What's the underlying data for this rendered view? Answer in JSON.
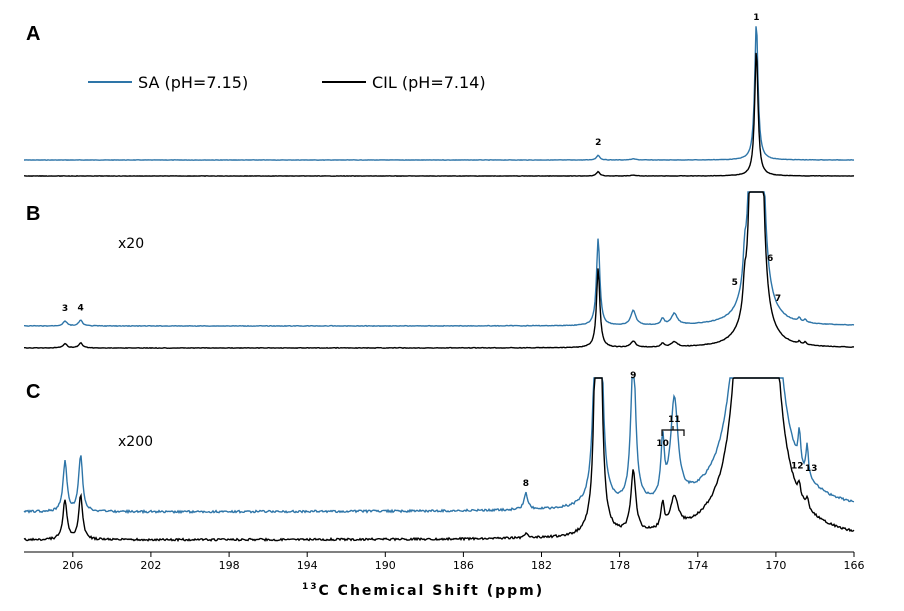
{
  "chart_data": {
    "type": "line",
    "xlabel_sup": "13",
    "xlabel_main": "C Chemical Shift (ppm)",
    "x_reversed": true,
    "xlim": [
      208.5,
      166
    ],
    "x_ticks": [
      206,
      202,
      198,
      194,
      190,
      186,
      182,
      178,
      174,
      170,
      166
    ],
    "colors": {
      "SA": "#2e75a8",
      "CIL": "#000000"
    },
    "legend": [
      {
        "name": "SA (pH=7.15)",
        "color": "#2e75a8"
      },
      {
        "name": "CIL (pH=7.14)",
        "color": "#000000"
      }
    ],
    "panels": [
      {
        "letter": "A",
        "scale": "",
        "peaks": [
          {
            "shift": 171.0,
            "height_sa": 1.0,
            "height_cil": 0.92,
            "width": 0.1
          },
          {
            "shift": 179.1,
            "height_sa": 0.035,
            "height_cil": 0.032,
            "width": 0.1
          },
          {
            "shift": 177.3,
            "height_sa": 0.008,
            "height_cil": 0.006,
            "width": 0.15
          }
        ],
        "labels": [
          {
            "text": "1",
            "shift": 171.0
          },
          {
            "text": "2",
            "shift": 179.1
          }
        ]
      },
      {
        "letter": "B",
        "scale": "x20",
        "peaks": [
          {
            "shift": 171.0,
            "height_sa": 20,
            "height_cil": 18.4,
            "width": 0.1
          },
          {
            "shift": 179.1,
            "height_sa": 0.7,
            "height_cil": 0.64,
            "width": 0.1
          },
          {
            "shift": 177.3,
            "height_sa": 0.12,
            "height_cil": 0.05,
            "width": 0.15
          },
          {
            "shift": 175.8,
            "height_sa": 0.05,
            "height_cil": 0.03,
            "width": 0.1
          },
          {
            "shift": 175.2,
            "height_sa": 0.09,
            "height_cil": 0.04,
            "width": 0.18
          },
          {
            "shift": 171.6,
            "height_sa": 0.2,
            "height_cil": 0.18,
            "width": 0.08
          },
          {
            "shift": 170.7,
            "height_sa": 0.25,
            "height_cil": 0.2,
            "width": 0.08
          },
          {
            "shift": 206.4,
            "height_sa": 0.04,
            "height_cil": 0.035,
            "width": 0.12
          },
          {
            "shift": 205.6,
            "height_sa": 0.045,
            "height_cil": 0.04,
            "width": 0.12
          },
          {
            "shift": 168.8,
            "height_sa": 0.03,
            "height_cil": 0.02,
            "width": 0.07
          },
          {
            "shift": 168.5,
            "height_sa": 0.025,
            "height_cil": 0.02,
            "width": 0.07
          }
        ],
        "labels": [
          {
            "text": "3",
            "shift": 206.4
          },
          {
            "text": "4",
            "shift": 205.6
          },
          {
            "text": "5",
            "shift": 171.8
          },
          {
            "text": "6",
            "shift": 170.5
          },
          {
            "text": "7",
            "shift": 170.2
          }
        ]
      },
      {
        "letter": "C",
        "scale": "x200",
        "peaks": [
          {
            "shift": 171.0,
            "height_sa": 200,
            "height_cil": 184,
            "width": 0.1
          },
          {
            "shift": 179.1,
            "height_sa": 7.0,
            "height_cil": 6.4,
            "width": 0.1
          },
          {
            "shift": 177.3,
            "height_sa": 1.2,
            "height_cil": 0.5,
            "width": 0.15
          },
          {
            "shift": 175.8,
            "height_sa": 0.45,
            "height_cil": 0.2,
            "width": 0.1
          },
          {
            "shift": 175.2,
            "height_sa": 0.8,
            "height_cil": 0.25,
            "width": 0.22
          },
          {
            "shift": 206.4,
            "height_sa": 0.4,
            "height_cil": 0.32,
            "width": 0.12
          },
          {
            "shift": 205.6,
            "height_sa": 0.45,
            "height_cil": 0.35,
            "width": 0.12
          },
          {
            "shift": 182.8,
            "height_sa": 0.13,
            "height_cil": 0.03,
            "width": 0.12
          },
          {
            "shift": 168.8,
            "height_sa": 0.27,
            "height_cil": 0.1,
            "width": 0.07
          },
          {
            "shift": 168.4,
            "height_sa": 0.25,
            "height_cil": 0.08,
            "width": 0.07
          }
        ],
        "labels": [
          {
            "text": "8",
            "shift": 182.8
          },
          {
            "text": "9",
            "shift": 177.3
          },
          {
            "text": "10",
            "shift": 175.8
          },
          {
            "text": "11",
            "shift": 175.2
          },
          {
            "text": "12",
            "shift": 168.8
          },
          {
            "text": "13",
            "shift": 168.4
          }
        ]
      }
    ]
  }
}
